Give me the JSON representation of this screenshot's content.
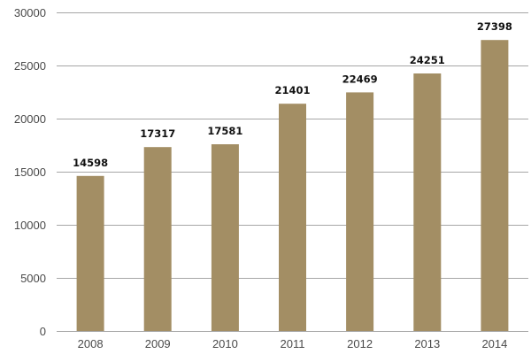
{
  "chart_data": {
    "type": "bar",
    "title": "",
    "xlabel": "",
    "ylabel": "",
    "categories": [
      "2008",
      "2009",
      "2010",
      "2011",
      "2012",
      "2013",
      "2014"
    ],
    "values": [
      14598,
      17317,
      17581,
      21401,
      22469,
      24251,
      27398
    ],
    "data_labels": [
      "14598",
      "17317",
      "17581",
      "21401",
      "22469",
      "24251",
      "27398"
    ],
    "ylim": [
      0,
      30000
    ],
    "yticks": [
      0,
      5000,
      10000,
      15000,
      20000,
      25000,
      30000
    ],
    "ytick_labels": [
      "0",
      "5000",
      "10000",
      "15000",
      "20000",
      "25000",
      "30000"
    ],
    "grid": true,
    "legend": "none",
    "colors": {
      "bar": "#a38e64",
      "grid": "#a6a6a6"
    }
  }
}
